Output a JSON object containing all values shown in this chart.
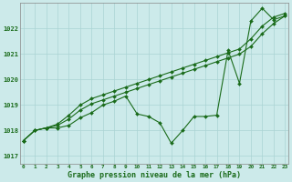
{
  "title": "Graphe pression niveau de la mer (hPa)",
  "bg_color": "#cceaea",
  "line_color": "#1a6b1a",
  "grid_color": "#aad4d4",
  "ylim": [
    1016.7,
    1023.0
  ],
  "xlim": [
    -0.3,
    23.3
  ],
  "yticks": [
    1017,
    1018,
    1019,
    1020,
    1021,
    1022
  ],
  "xticks": [
    0,
    1,
    2,
    3,
    4,
    5,
    6,
    7,
    8,
    9,
    10,
    11,
    12,
    13,
    14,
    15,
    16,
    17,
    18,
    19,
    20,
    21,
    22,
    23
  ],
  "line_zigzag": [
    1017.6,
    1018.0,
    1018.1,
    1018.1,
    1018.2,
    1018.5,
    1018.7,
    1019.0,
    1019.15,
    1019.35,
    1018.65,
    1018.55,
    1018.3,
    1017.5,
    1018.0,
    1018.55,
    1018.55,
    1018.6,
    1021.15,
    1019.85,
    1022.3,
    1022.8,
    1022.35,
    1022.5
  ],
  "line_smooth1": [
    1017.6,
    1018.0,
    1018.1,
    1018.2,
    1018.45,
    1018.8,
    1019.05,
    1019.2,
    1019.35,
    1019.5,
    1019.65,
    1019.8,
    1019.95,
    1020.1,
    1020.25,
    1020.4,
    1020.55,
    1020.7,
    1020.85,
    1021.0,
    1021.3,
    1021.8,
    1022.2,
    1022.5
  ],
  "line_smooth2": [
    1017.6,
    1018.0,
    1018.1,
    1018.25,
    1018.6,
    1019.0,
    1019.25,
    1019.4,
    1019.55,
    1019.7,
    1019.85,
    1020.0,
    1020.15,
    1020.3,
    1020.45,
    1020.6,
    1020.75,
    1020.9,
    1021.05,
    1021.2,
    1021.6,
    1022.1,
    1022.45,
    1022.6
  ]
}
